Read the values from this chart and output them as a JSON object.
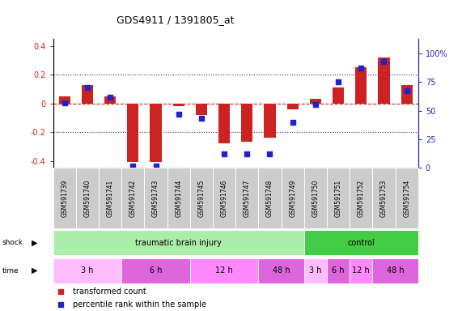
{
  "title": "GDS4911 / 1391805_at",
  "samples": [
    "GSM591739",
    "GSM591740",
    "GSM591741",
    "GSM591742",
    "GSM591743",
    "GSM591744",
    "GSM591745",
    "GSM591746",
    "GSM591747",
    "GSM591748",
    "GSM591749",
    "GSM591750",
    "GSM591751",
    "GSM591752",
    "GSM591753",
    "GSM591754"
  ],
  "red_values": [
    0.05,
    0.13,
    0.05,
    -0.41,
    -0.41,
    -0.02,
    -0.08,
    -0.28,
    -0.27,
    -0.24,
    -0.04,
    0.03,
    0.11,
    0.25,
    0.32,
    0.13
  ],
  "blue_values": [
    0.57,
    0.7,
    0.62,
    0.02,
    0.02,
    0.47,
    0.43,
    0.12,
    0.12,
    0.12,
    0.4,
    0.55,
    0.75,
    0.87,
    0.93,
    0.67
  ],
  "ylim_left": [
    -0.45,
    0.45
  ],
  "ylim_right": [
    0.0,
    1.125
  ],
  "yticks_left": [
    -0.4,
    -0.2,
    0.0,
    0.2,
    0.4
  ],
  "ytick_labels_left": [
    "-0.4",
    "-0.2",
    "0",
    "0.2",
    "0.4"
  ],
  "yticks_right": [
    0.0,
    0.25,
    0.5,
    0.75,
    1.0
  ],
  "ytick_labels_right": [
    "0",
    "25",
    "50",
    "75",
    "100%"
  ],
  "red_color": "#cc2222",
  "blue_color": "#2222cc",
  "zero_line_color": "#cc2222",
  "dotted_line_color": "#333333",
  "bar_width": 0.5,
  "shock_row": {
    "groups": [
      {
        "text": "traumatic brain injury",
        "start": 0,
        "end": 11,
        "color": "#aaeeaa"
      },
      {
        "text": "control",
        "start": 11,
        "end": 16,
        "color": "#44cc44"
      }
    ]
  },
  "time_row": {
    "groups": [
      {
        "text": "3 h",
        "start": 0,
        "end": 3,
        "color": "#ffbbff"
      },
      {
        "text": "6 h",
        "start": 3,
        "end": 6,
        "color": "#dd66dd"
      },
      {
        "text": "12 h",
        "start": 6,
        "end": 9,
        "color": "#ff88ff"
      },
      {
        "text": "48 h",
        "start": 9,
        "end": 11,
        "color": "#dd66dd"
      },
      {
        "text": "3 h",
        "start": 11,
        "end": 12,
        "color": "#ffbbff"
      },
      {
        "text": "6 h",
        "start": 12,
        "end": 13,
        "color": "#dd66dd"
      },
      {
        "text": "12 h",
        "start": 13,
        "end": 14,
        "color": "#ff88ff"
      },
      {
        "text": "48 h",
        "start": 14,
        "end": 16,
        "color": "#dd66dd"
      }
    ]
  },
  "legend_items": [
    {
      "label": "transformed count",
      "color": "#cc2222"
    },
    {
      "label": "percentile rank within the sample",
      "color": "#2222cc"
    }
  ],
  "bg_color": "#ffffff",
  "tick_label_bg": "#cccccc"
}
